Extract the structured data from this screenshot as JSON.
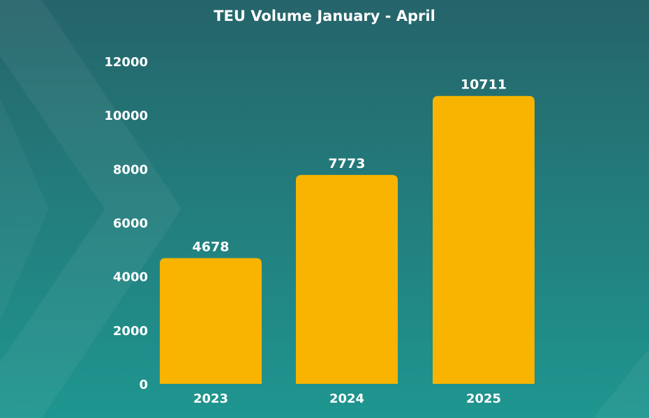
{
  "colors": {
    "background_top": "#25646a",
    "background_bottom": "#1f9690",
    "bar": "#f8b400",
    "text": "#ffffff"
  },
  "chart_data": {
    "type": "bar",
    "title": "TEU Volume January - April",
    "xlabel": "",
    "ylabel": "",
    "categories": [
      "2023",
      "2024",
      "2025"
    ],
    "values": [
      4678,
      7773,
      10711
    ],
    "data_labels": [
      "4678",
      "7773",
      "10711"
    ],
    "ylim": [
      0,
      12000
    ],
    "yticks": [
      0,
      2000,
      4000,
      6000,
      8000,
      10000,
      12000
    ],
    "ytick_labels": [
      "0",
      "2000",
      "4000",
      "6000",
      "8000",
      "10000",
      "12000"
    ],
    "grid": false,
    "legend": "none"
  }
}
